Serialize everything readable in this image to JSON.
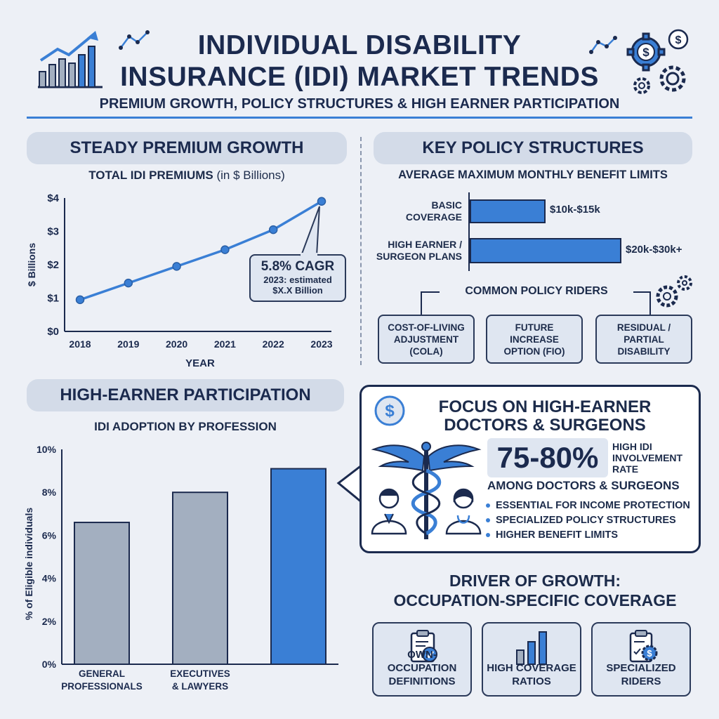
{
  "header": {
    "title_line1": "INDIVIDUAL DISABILITY",
    "title_line2": "INSURANCE (IDI) MARKET TRENDS",
    "subtitle": "PREMIUM GROWTH, POLICY STRUCTURES & HIGH EARNER PARTICIPATION"
  },
  "colors": {
    "accent": "#3a7fd5",
    "navy": "#1b2a4e",
    "bar_gray": "#a3afc0",
    "panel": "#d3dbe8"
  },
  "premium": {
    "heading": "STEADY PREMIUM GROWTH",
    "chart_title_main": "TOTAL IDI PREMIUMS",
    "chart_title_sub": "(in $ Billions)",
    "callout_line1": "5.8% CAGR",
    "callout_line2": "2023: estimated",
    "callout_line3": "$X.X Billion"
  },
  "policy": {
    "heading": "KEY POLICY STRUCTURES",
    "limits_title": "AVERAGE MAXIMUM MONTHLY BENEFIT LIMITS",
    "basic_line1": "BASIC",
    "basic_line2": "COVERAGE",
    "basic_value": "$10k-$15k",
    "high_line1": "HIGH EARNER /",
    "high_line2": "SURGEON PLANS",
    "high_value": "$20k-$30k+",
    "riders_title": "COMMON POLICY RIDERS",
    "riders": [
      "COST-OF-LIVING ADJUSTMENT (COLA)",
      "FUTURE INCREASE OPTION (FIO)",
      "RESIDUAL / PARTIAL DISABILITY"
    ]
  },
  "participation": {
    "heading": "HIGH-EARNER PARTICIPATION",
    "chart_title": "IDI ADOPTION BY PROFESSION"
  },
  "focus": {
    "heading_line1": "FOCUS ON HIGH-EARNER",
    "heading_line2": "DOCTORS & SURGEONS",
    "stat": "75-80%",
    "stat_label_1": "HIGH IDI",
    "stat_label_2": "INVOLVEMENT",
    "stat_label_3": "RATE",
    "stat_caption": "AMONG DOCTORS & SURGEONS",
    "bullets": [
      "ESSENTIAL FOR INCOME PROTECTION",
      "SPECIALIZED POLICY STRUCTURES",
      "HIGHER BENEFIT LIMITS"
    ]
  },
  "drivers": {
    "heading_line1": "DRIVER OF GROWTH:",
    "heading_line2": "OCCUPATION-SPECIFIC COVERAGE",
    "items": [
      {
        "line1": "OWN-OCCUPATION",
        "line2": "DEFINITIONS"
      },
      {
        "line1": "HIGH COVERAGE",
        "line2": "RATIOS"
      },
      {
        "line1": "SPECIALIZED",
        "line2": "RIDERS"
      }
    ]
  },
  "chart_data": [
    {
      "type": "line",
      "title": "TOTAL IDI PREMIUMS (in $ Billions)",
      "xlabel": "YEAR",
      "ylabel": "$ Billions",
      "x": [
        "2018",
        "2019",
        "2020",
        "2021",
        "2022",
        "2023"
      ],
      "series": [
        {
          "values": [
            0.95,
            1.45,
            1.95,
            2.45,
            3.05,
            3.9
          ]
        }
      ],
      "ylim": [
        0,
        4
      ],
      "yticks": [
        "$0",
        "$1",
        "$2",
        "$3",
        "$4"
      ],
      "grid": false
    },
    {
      "type": "bar",
      "title": "IDI ADOPTION BY PROFESSION",
      "xlabel": "",
      "ylabel": "% of Eligible individuals",
      "categories": [
        "GENERAL PROFESSIONALS",
        "EXECUTIVES & LAWYERS",
        ""
      ],
      "values": [
        6.6,
        8.0,
        9.1
      ],
      "ylim": [
        0,
        10
      ],
      "yticks": [
        "0%",
        "2%",
        "4%",
        "6%",
        "8%",
        "10%"
      ]
    },
    {
      "type": "bar",
      "title": "AVERAGE MAXIMUM MONTHLY BENEFIT LIMITS",
      "orientation": "horizontal",
      "categories": [
        "BASIC COVERAGE",
        "HIGH EARNER / SURGEON PLANS"
      ],
      "values": [
        15,
        30
      ],
      "value_labels": [
        "$10k-$15k",
        "$20k-$30k+"
      ]
    }
  ]
}
